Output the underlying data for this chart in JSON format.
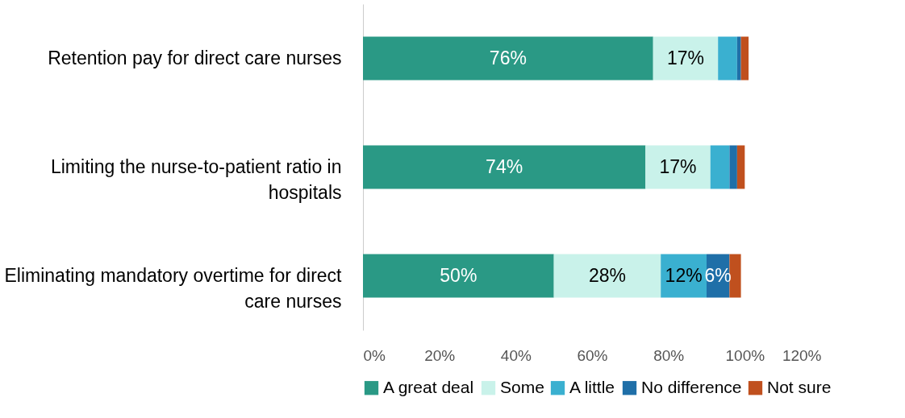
{
  "chart_data": {
    "type": "bar",
    "orientation": "horizontal",
    "stacked": true,
    "categories": [
      "Retention pay for direct care nurses",
      "Limiting the nurse-to-patient ratio in hospitals",
      "Eliminating mandatory overtime for direct care nurses"
    ],
    "series": [
      {
        "name": "A great deal",
        "color": "#2a9985",
        "values": [
          76,
          74,
          50
        ],
        "value_labels": [
          "76%",
          "74%",
          "50%"
        ]
      },
      {
        "name": "Some",
        "color": "#c9f2ea",
        "values": [
          17,
          17,
          28
        ],
        "value_labels": [
          "17%",
          "17%",
          "28%"
        ]
      },
      {
        "name": "A little",
        "color": "#3ab0d0",
        "values": [
          5,
          5,
          12
        ],
        "value_labels": [
          null,
          null,
          "12%"
        ]
      },
      {
        "name": "No difference",
        "color": "#1f6fa8",
        "values": [
          1,
          2,
          6
        ],
        "value_labels": [
          null,
          null,
          "6%"
        ]
      },
      {
        "name": "Not sure",
        "color": "#c0501e",
        "values": [
          2,
          2,
          3
        ],
        "value_labels": [
          null,
          null,
          null
        ]
      }
    ],
    "xlim": [
      0,
      120
    ],
    "xticks": [
      {
        "value": 0,
        "label": "0%"
      },
      {
        "value": 20,
        "label": "20%"
      },
      {
        "value": 40,
        "label": "40%"
      },
      {
        "value": 60,
        "label": "60%"
      },
      {
        "value": 80,
        "label": "80%"
      },
      {
        "value": 100,
        "label": "100%"
      },
      {
        "value": 120,
        "label": "120%"
      }
    ],
    "legend": "bottom",
    "grid": false
  }
}
